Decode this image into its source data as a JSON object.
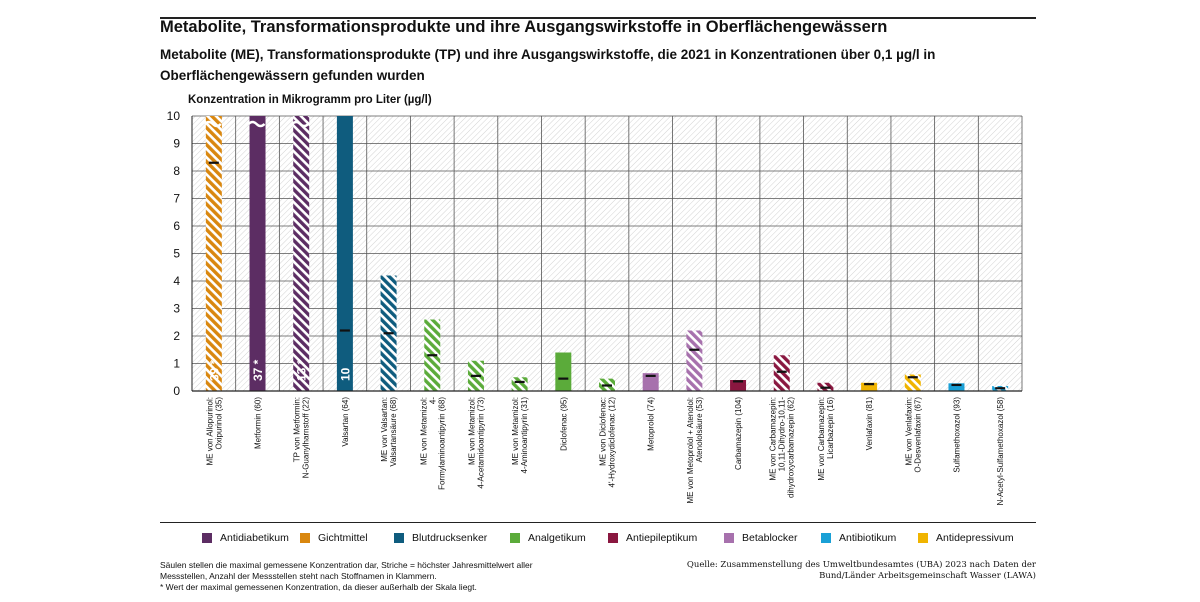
{
  "header": {
    "title": "Metabolite, Transformationsprodukte und ihre Ausgangswirkstoffe in Oberflächengewässern",
    "subtitle": "Metabolite (ME), Transformationsprodukte (TP) und ihre Ausgangswirkstoffe, die 2021 in Konzentrationen über 0,1 µg/l in Oberflächengewässern gefunden wurden"
  },
  "colors": {
    "Antidiabetikum": "#5c2d63",
    "Gichtmittel": "#d9870f",
    "Blutdrucksenker": "#0f5c7e",
    "Analgetikum": "#5bab3a",
    "Antiepileptikum": "#8a1740",
    "Betablocker": "#a771ad",
    "Antibiotikum": "#1aa0d6",
    "Antidepressivum": "#f0b400"
  },
  "legend": [
    {
      "label": "Antidiabetikum",
      "icon": "square-icon"
    },
    {
      "label": "Gichtmittel",
      "icon": "square-icon"
    },
    {
      "label": "Blutdrucksenker",
      "icon": "square-icon"
    },
    {
      "label": "Analgetikum",
      "icon": "square-icon"
    },
    {
      "label": "Antiepileptikum",
      "icon": "square-icon"
    },
    {
      "label": "Betablocker",
      "icon": "square-icon"
    },
    {
      "label": "Antibiotikum",
      "icon": "square-icon"
    },
    {
      "label": "Antidepressivum",
      "icon": "square-icon"
    }
  ],
  "footnote": {
    "line1": "Säulen stellen die maximal gemessene Konzentration dar, Striche = höchster Jahresmittelwert aller Messstellen, Anzahl der Messstellen steht nach Stoffnamen in Klammern.",
    "line2": "* Wert der maximal gemessenen Konzentration, da dieser außerhalb der Skala liegt."
  },
  "source": "Quelle: Zusammenstellung des Umweltbundesamtes (UBA) 2023 nach Daten der Bund/Länder Arbeitsgemeinschaft Wasser (LAWA)",
  "chart_data": {
    "type": "bar",
    "ylabel": "Konzentration in Mikrogramm pro Liter (µg/l)",
    "ylim": [
      0,
      10
    ],
    "yticks": [
      0,
      1,
      2,
      3,
      4,
      5,
      6,
      7,
      8,
      9,
      10
    ],
    "grid": true,
    "series": [
      {
        "name": "maximal gemessene Konzentration",
        "mark": "bar"
      },
      {
        "name": "höchster Jahresmittelwert",
        "mark": "dash"
      }
    ],
    "bars": [
      {
        "label": "ME von Allopurinol: Oxipurinol (35)",
        "group": "Gichtmittel",
        "max": 10,
        "mean": 8.3,
        "hatched": true,
        "broken": true,
        "note": "39 *"
      },
      {
        "label": "Metformin (60)",
        "group": "Antidiabetikum",
        "max": 10,
        "mean": null,
        "hatched": false,
        "broken": true,
        "note": "37 *"
      },
      {
        "label": "TP von Metformin: N-Guanylharnstoff (22)",
        "group": "Antidiabetikum",
        "max": 10,
        "mean": null,
        "hatched": true,
        "broken": true,
        "note": "13 *"
      },
      {
        "label": "Valsartan (64)",
        "group": "Blutdrucksenker",
        "max": 10,
        "mean": 2.2,
        "hatched": false,
        "broken": false,
        "note": "10"
      },
      {
        "label": "ME von Valsartan: Valsartansäure (68)",
        "group": "Blutdrucksenker",
        "max": 4.2,
        "mean": 2.1,
        "hatched": true,
        "broken": false,
        "note": ""
      },
      {
        "label": "ME von Metamizol: 4-Formylaminoantipyrin (68)",
        "group": "Analgetikum",
        "max": 2.6,
        "mean": 1.3,
        "hatched": true,
        "broken": false,
        "note": ""
      },
      {
        "label": "ME von Metamizol: 4-Acetamidoantipyrin (73)",
        "group": "Analgetikum",
        "max": 1.1,
        "mean": 0.55,
        "hatched": true,
        "broken": false,
        "note": ""
      },
      {
        "label": "ME von Metamizol: 4-Aminoantipyrin (31)",
        "group": "Analgetikum",
        "max": 0.5,
        "mean": 0.33,
        "hatched": true,
        "broken": false,
        "note": ""
      },
      {
        "label": "Diclofenac (95)",
        "group": "Analgetikum",
        "max": 1.4,
        "mean": 0.45,
        "hatched": false,
        "broken": false,
        "note": ""
      },
      {
        "label": "ME von Diclofenac: 4'-Hydroxydiclofenac (12)",
        "group": "Analgetikum",
        "max": 0.45,
        "mean": 0.2,
        "hatched": true,
        "broken": false,
        "note": ""
      },
      {
        "label": "Metoprolol (74)",
        "group": "Betablocker",
        "max": 0.65,
        "mean": 0.55,
        "hatched": false,
        "broken": false,
        "note": ""
      },
      {
        "label": "ME von Metoprolol + Atenolol: Atenololsäure (53)",
        "group": "Betablocker",
        "max": 2.2,
        "mean": 1.5,
        "hatched": true,
        "broken": false,
        "note": ""
      },
      {
        "label": "Carbamazepin (104)",
        "group": "Antiepileptikum",
        "max": 0.4,
        "mean": 0.35,
        "hatched": false,
        "broken": false,
        "note": ""
      },
      {
        "label": "ME von Carbamazepin: 10,11-Dihydro-10,11-dihydroxycarbamazepin (62)",
        "group": "Antiepileptikum",
        "max": 1.3,
        "mean": 0.7,
        "hatched": true,
        "broken": false,
        "note": ""
      },
      {
        "label": "ME von Carbamazepin: Licarbazepin (16)",
        "group": "Antiepileptikum",
        "max": 0.3,
        "mean": 0.12,
        "hatched": true,
        "broken": false,
        "note": ""
      },
      {
        "label": "Venlafaxin (81)",
        "group": "Antidepressivum",
        "max": 0.3,
        "mean": 0.25,
        "hatched": false,
        "broken": false,
        "note": ""
      },
      {
        "label": "ME von Venlafaxin: O-Desvenlafaxin (67)",
        "group": "Antidepressivum",
        "max": 0.6,
        "mean": 0.5,
        "hatched": true,
        "broken": false,
        "note": ""
      },
      {
        "label": "Sulfamethoxazol (93)",
        "group": "Antibiotikum",
        "max": 0.28,
        "mean": 0.22,
        "hatched": false,
        "broken": false,
        "note": ""
      },
      {
        "label": "N-Acetyl-Sulfamethoxazol (58)",
        "group": "Antibiotikum",
        "max": 0.18,
        "mean": 0.1,
        "hatched": true,
        "broken": false,
        "note": ""
      }
    ]
  }
}
